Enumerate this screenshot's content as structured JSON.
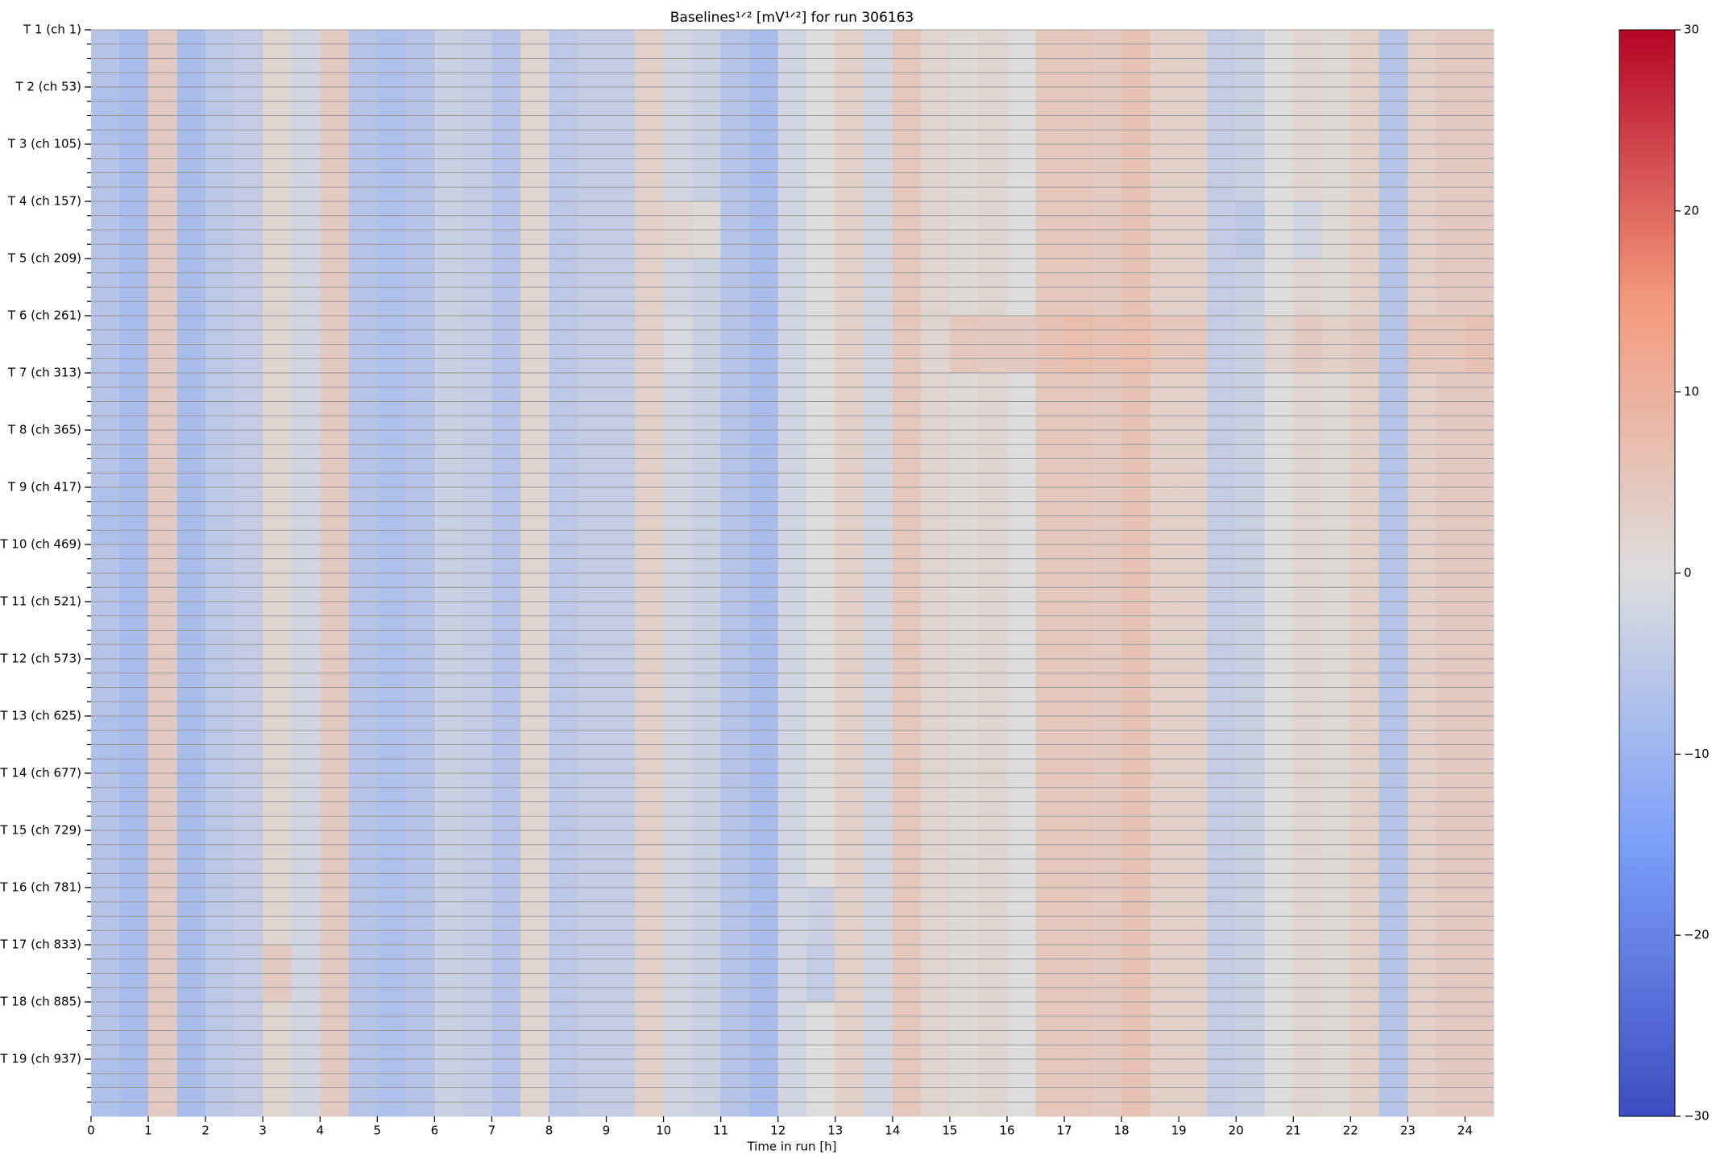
{
  "chart_data": {
    "type": "heatmap",
    "title": "Baselines¹ᐟ² [mV¹ᐟ²] for run 306163",
    "xlabel": "Time in run [h]",
    "x_bins": [
      0,
      0.5,
      1,
      1.5,
      2,
      2.5,
      3,
      3.5,
      4,
      4.5,
      5,
      5.5,
      6,
      6.5,
      7,
      7.5,
      8,
      8.5,
      9,
      9.5,
      10,
      10.5,
      11,
      11.5,
      12,
      12.5,
      13,
      13.5,
      14,
      14.5,
      15,
      15.5,
      16,
      16.5,
      17,
      17.5,
      18,
      18.5,
      19,
      19.5,
      20,
      20.5,
      21,
      21.5,
      22,
      22.5,
      23,
      23.5,
      24,
      24.5
    ],
    "y_bins": [
      1,
      53,
      105,
      157,
      209,
      261,
      313,
      365,
      417,
      469,
      521,
      573,
      625,
      677,
      729,
      781,
      833,
      885,
      937,
      989
    ],
    "xlim": [
      0,
      24.5
    ],
    "ylim": [
      1,
      989
    ],
    "y_inverted": true,
    "xticks": [
      0,
      1,
      2,
      3,
      4,
      5,
      6,
      7,
      8,
      9,
      10,
      11,
      12,
      13,
      14,
      15,
      16,
      17,
      18,
      19,
      20,
      21,
      22,
      23,
      24
    ],
    "yticks": [
      {
        "value": 1,
        "label": "T 1 (ch 1)"
      },
      {
        "value": 53,
        "label": "T 2 (ch 53)"
      },
      {
        "value": 105,
        "label": "T 3 (ch 105)"
      },
      {
        "value": 157,
        "label": "T 4 (ch 157)"
      },
      {
        "value": 209,
        "label": "T 5 (ch 209)"
      },
      {
        "value": 261,
        "label": "T 6 (ch 261)"
      },
      {
        "value": 313,
        "label": "T 7 (ch 313)"
      },
      {
        "value": 365,
        "label": "T 8 (ch 365)"
      },
      {
        "value": 417,
        "label": "T 9 (ch 417)"
      },
      {
        "value": 469,
        "label": "T 10 (ch 469)"
      },
      {
        "value": 521,
        "label": "T 11 (ch 521)"
      },
      {
        "value": 573,
        "label": "T 12 (ch 573)"
      },
      {
        "value": 625,
        "label": "T 13 (ch 625)"
      },
      {
        "value": 677,
        "label": "T 14 (ch 677)"
      },
      {
        "value": 729,
        "label": "T 15 (ch 729)"
      },
      {
        "value": 781,
        "label": "T 16 (ch 781)"
      },
      {
        "value": 833,
        "label": "T 17 (ch 833)"
      },
      {
        "value": 885,
        "label": "T 18 (ch 885)"
      },
      {
        "value": 937,
        "label": "T 19 (ch 937)"
      }
    ],
    "yminorticks": [
      1,
      14,
      27,
      40,
      53,
      66,
      79,
      92,
      105,
      118,
      131,
      144,
      157,
      170,
      183,
      196,
      209,
      222,
      235,
      248,
      261,
      274,
      287,
      300,
      313,
      326,
      339,
      352,
      365,
      378,
      391,
      404,
      417,
      430,
      443,
      456,
      469,
      482,
      495,
      508,
      521,
      534,
      547,
      560,
      573,
      586,
      599,
      612,
      625,
      638,
      651,
      664,
      677,
      690,
      703,
      716,
      729,
      742,
      755,
      768,
      781,
      794,
      807,
      820,
      833,
      846,
      859,
      872,
      885,
      898,
      911,
      924,
      937,
      950,
      963,
      976
    ],
    "grid": true,
    "colormap": "coolwarm",
    "clim": [
      -30,
      30
    ],
    "colorbar_ticks": [
      {
        "value": -30,
        "label": "−30"
      },
      {
        "value": -20,
        "label": "−20"
      },
      {
        "value": -10,
        "label": "−10"
      },
      0,
      10,
      20,
      30
    ],
    "values": [
      [
        -6,
        -8,
        4,
        -8,
        -5,
        -4,
        2,
        -2,
        4,
        -6,
        -7,
        -6,
        -3,
        -4,
        -6,
        2,
        -5,
        -4,
        -4,
        3,
        -2,
        -3,
        -6,
        -8,
        -2,
        0,
        3,
        -2,
        5,
        2,
        1,
        2,
        0,
        5,
        5,
        4,
        6,
        3,
        3,
        -4,
        -3,
        0,
        2,
        1,
        3,
        -6,
        3,
        4,
        4
      ],
      [
        -7,
        -8,
        4,
        -8,
        -5,
        -4,
        2,
        -2,
        4,
        -6,
        -7,
        -6,
        -3,
        -4,
        -6,
        2,
        -5,
        -4,
        -4,
        3,
        -2,
        -3,
        -6,
        -8,
        -2,
        0,
        3,
        -2,
        5,
        2,
        1,
        2,
        0,
        5,
        5,
        4,
        6,
        3,
        3,
        -4,
        -3,
        0,
        2,
        1,
        3,
        -6,
        3,
        4,
        4
      ],
      [
        -6,
        -8,
        4,
        -8,
        -5,
        -4,
        2,
        -2,
        4,
        -6,
        -7,
        -6,
        -3,
        -4,
        -6,
        2,
        -5,
        -4,
        -4,
        3,
        -2,
        -3,
        -6,
        -8,
        -2,
        0,
        3,
        -2,
        5,
        2,
        1,
        2,
        0,
        5,
        5,
        4,
        6,
        3,
        3,
        -4,
        -3,
        0,
        2,
        1,
        3,
        -6,
        3,
        4,
        4
      ],
      [
        -6,
        -8,
        4,
        -8,
        -5,
        -4,
        2,
        -2,
        4,
        -6,
        -7,
        -6,
        -3,
        -4,
        -6,
        2,
        -5,
        -4,
        -4,
        3,
        2,
        1,
        -6,
        -8,
        -2,
        0,
        3,
        -2,
        5,
        2,
        1,
        2,
        0,
        5,
        5,
        4,
        6,
        3,
        3,
        -4,
        -5,
        0,
        -2,
        1,
        3,
        -6,
        3,
        4,
        4
      ],
      [
        -6,
        -8,
        4,
        -8,
        -5,
        -4,
        2,
        -2,
        4,
        -6,
        -7,
        -6,
        -3,
        -4,
        -6,
        2,
        -5,
        -4,
        -4,
        3,
        -2,
        -3,
        -6,
        -8,
        -2,
        0,
        3,
        -2,
        5,
        2,
        1,
        2,
        0,
        5,
        5,
        4,
        6,
        3,
        3,
        -4,
        -3,
        0,
        2,
        1,
        3,
        -6,
        3,
        4,
        4
      ],
      [
        -6,
        -8,
        4,
        -8,
        -5,
        -4,
        2,
        -2,
        4,
        -6,
        -7,
        -6,
        -3,
        -4,
        -6,
        2,
        -5,
        -4,
        -4,
        3,
        -1,
        -3,
        -6,
        -8,
        -2,
        0,
        3,
        -2,
        5,
        2,
        5,
        4,
        4,
        6,
        7,
        6,
        7,
        5,
        5,
        -4,
        -3,
        2,
        4,
        3,
        4,
        -6,
        5,
        5,
        6
      ],
      [
        -6,
        -8,
        4,
        -8,
        -5,
        -4,
        2,
        -2,
        4,
        -6,
        -7,
        -6,
        -3,
        -4,
        -6,
        2,
        -5,
        -4,
        -4,
        3,
        -2,
        -3,
        -6,
        -8,
        -2,
        0,
        3,
        -2,
        5,
        2,
        1,
        2,
        0,
        5,
        5,
        4,
        6,
        3,
        3,
        -4,
        -3,
        0,
        2,
        1,
        3,
        -6,
        3,
        4,
        4
      ],
      [
        -6,
        -8,
        4,
        -8,
        -5,
        -4,
        2,
        -2,
        4,
        -6,
        -7,
        -6,
        -3,
        -4,
        -6,
        2,
        -5,
        -4,
        -4,
        3,
        -2,
        -3,
        -6,
        -8,
        -2,
        0,
        3,
        -2,
        5,
        2,
        1,
        2,
        0,
        5,
        5,
        4,
        6,
        3,
        3,
        -4,
        -3,
        0,
        2,
        1,
        3,
        -6,
        3,
        4,
        4
      ],
      [
        -7,
        -8,
        4,
        -8,
        -5,
        -4,
        2,
        -2,
        4,
        -6,
        -7,
        -6,
        -3,
        -4,
        -6,
        2,
        -5,
        -4,
        -4,
        3,
        -2,
        -3,
        -6,
        -8,
        -2,
        0,
        3,
        -2,
        5,
        2,
        1,
        2,
        0,
        5,
        5,
        4,
        6,
        3,
        3,
        -4,
        -3,
        0,
        2,
        1,
        3,
        -6,
        3,
        4,
        4
      ],
      [
        -6,
        -8,
        4,
        -8,
        -5,
        -4,
        2,
        -2,
        4,
        -6,
        -7,
        -6,
        -3,
        -4,
        -6,
        2,
        -5,
        -4,
        -4,
        3,
        -2,
        -3,
        -6,
        -8,
        -2,
        0,
        3,
        -2,
        5,
        2,
        1,
        2,
        0,
        5,
        5,
        4,
        6,
        3,
        3,
        -4,
        -3,
        0,
        2,
        1,
        3,
        -6,
        3,
        4,
        4
      ],
      [
        -6,
        -8,
        4,
        -8,
        -5,
        -4,
        2,
        -2,
        4,
        -6,
        -7,
        -6,
        -3,
        -4,
        -6,
        2,
        -5,
        -4,
        -4,
        3,
        -2,
        -3,
        -6,
        -8,
        -2,
        0,
        3,
        -2,
        5,
        2,
        1,
        2,
        0,
        5,
        5,
        4,
        6,
        3,
        3,
        -4,
        -3,
        0,
        2,
        1,
        3,
        -6,
        3,
        4,
        4
      ],
      [
        -6,
        -8,
        4,
        -8,
        -5,
        -4,
        2,
        -2,
        4,
        -6,
        -7,
        -6,
        -3,
        -4,
        -6,
        2,
        -5,
        -4,
        -4,
        3,
        -2,
        -3,
        -6,
        -8,
        -2,
        0,
        3,
        -2,
        5,
        2,
        1,
        2,
        0,
        5,
        5,
        4,
        6,
        3,
        3,
        -4,
        -3,
        0,
        2,
        1,
        3,
        -6,
        3,
        4,
        4
      ],
      [
        -7,
        -8,
        4,
        -8,
        -5,
        -4,
        2,
        -2,
        4,
        -6,
        -7,
        -6,
        -3,
        -4,
        -6,
        2,
        -5,
        -4,
        -4,
        3,
        -2,
        -3,
        -6,
        -8,
        -2,
        0,
        3,
        -2,
        5,
        2,
        1,
        2,
        0,
        5,
        5,
        4,
        6,
        3,
        3,
        -4,
        -3,
        0,
        2,
        1,
        3,
        -6,
        3,
        4,
        4
      ],
      [
        -6,
        -8,
        4,
        -8,
        -5,
        -4,
        2,
        -2,
        4,
        -6,
        -7,
        -6,
        -3,
        -4,
        -6,
        2,
        -5,
        -4,
        -4,
        3,
        -2,
        -3,
        -6,
        -8,
        -2,
        0,
        3,
        -2,
        5,
        2,
        1,
        2,
        0,
        5,
        5,
        4,
        6,
        3,
        3,
        -4,
        -3,
        0,
        2,
        1,
        3,
        -6,
        3,
        4,
        4
      ],
      [
        -6,
        -8,
        4,
        -8,
        -5,
        -4,
        2,
        -2,
        4,
        -6,
        -7,
        -6,
        -3,
        -4,
        -6,
        2,
        -5,
        -4,
        -4,
        3,
        -2,
        -3,
        -6,
        -8,
        -2,
        0,
        3,
        -2,
        5,
        2,
        1,
        2,
        0,
        5,
        5,
        4,
        6,
        3,
        3,
        -4,
        -3,
        0,
        2,
        1,
        3,
        -6,
        3,
        4,
        4
      ],
      [
        -6,
        -8,
        4,
        -8,
        -5,
        -4,
        2,
        -2,
        4,
        -6,
        -7,
        -6,
        -3,
        -4,
        -6,
        2,
        -5,
        -4,
        -4,
        3,
        -2,
        -3,
        -6,
        -8,
        -2,
        -3,
        3,
        -2,
        5,
        2,
        1,
        2,
        0,
        5,
        5,
        4,
        6,
        3,
        3,
        -4,
        -3,
        0,
        2,
        1,
        3,
        -6,
        3,
        4,
        4
      ],
      [
        -6,
        -8,
        4,
        -8,
        -5,
        -4,
        4,
        -2,
        4,
        -6,
        -7,
        -6,
        -3,
        -4,
        -6,
        2,
        -5,
        -4,
        -4,
        3,
        -2,
        -3,
        -6,
        -8,
        -2,
        -4,
        3,
        -2,
        5,
        2,
        1,
        2,
        0,
        5,
        5,
        4,
        6,
        3,
        3,
        -4,
        -3,
        0,
        2,
        1,
        3,
        -6,
        3,
        4,
        4
      ],
      [
        -6,
        -8,
        4,
        -8,
        -5,
        -4,
        2,
        -2,
        4,
        -6,
        -7,
        -6,
        -3,
        -4,
        -6,
        2,
        -5,
        -4,
        -4,
        3,
        -2,
        -3,
        -6,
        -8,
        -2,
        0,
        3,
        -2,
        5,
        2,
        1,
        2,
        0,
        5,
        5,
        4,
        6,
        3,
        3,
        -4,
        -3,
        0,
        2,
        1,
        3,
        -6,
        3,
        4,
        4
      ],
      [
        -7,
        -8,
        4,
        -8,
        -5,
        -4,
        2,
        -2,
        4,
        -6,
        -7,
        -6,
        -3,
        -4,
        -6,
        2,
        -5,
        -4,
        -4,
        3,
        -2,
        -3,
        -6,
        -8,
        -2,
        0,
        3,
        -2,
        5,
        2,
        1,
        2,
        0,
        5,
        5,
        4,
        6,
        3,
        3,
        -4,
        -3,
        0,
        2,
        1,
        3,
        -6,
        3,
        4,
        4
      ]
    ]
  }
}
